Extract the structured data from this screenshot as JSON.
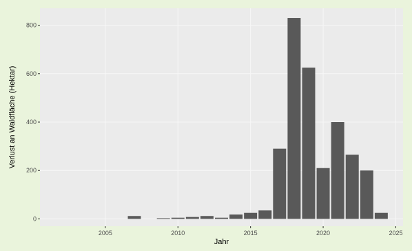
{
  "chart_data": {
    "type": "bar",
    "title": "",
    "xlabel": "Jahr",
    "ylabel": "Verlust an Waldfläche (Hektar)",
    "x": [
      2007,
      2009,
      2010,
      2011,
      2012,
      2013,
      2014,
      2015,
      2016,
      2017,
      2018,
      2019,
      2020,
      2021,
      2022,
      2023,
      2024
    ],
    "values": [
      12,
      3,
      5,
      8,
      12,
      5,
      18,
      25,
      35,
      290,
      830,
      625,
      210,
      400,
      265,
      200,
      25
    ],
    "xlim": [
      2000.5,
      2025.5
    ],
    "ylim": [
      -30,
      870
    ],
    "x_ticks": [
      2005,
      2010,
      2015,
      2020,
      2025
    ],
    "x_tick_labels": [
      "2005",
      "2010",
      "2015",
      "2020",
      "2025"
    ],
    "y_ticks": [
      0,
      200,
      400,
      600,
      800
    ],
    "y_tick_labels": [
      "0",
      "200",
      "400",
      "600",
      "800"
    ],
    "grid": true,
    "colors": {
      "page_background": "#eaf4dc",
      "panel_background": "#ebebeb",
      "grid_major": "#f7f7f7",
      "bar_fill": "#595959",
      "text": "#000000",
      "tick_text": "#4d4d4d"
    }
  }
}
